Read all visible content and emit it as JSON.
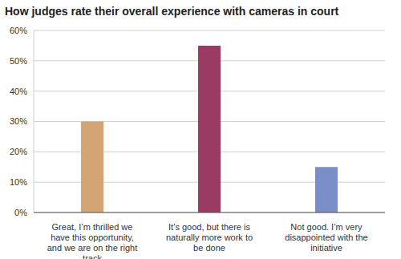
{
  "chart_data": {
    "type": "bar",
    "title": "How judges rate their overall experience with cameras in court",
    "categories": [
      "Great, I’m thrilled we have this opportunity, and we are on the right track",
      "It’s good, but there is naturally more work to be done",
      "Not good. I’m very disappointed with the initiative"
    ],
    "values": [
      30,
      55,
      15
    ],
    "colors": [
      "#d4a574",
      "#9b3a63",
      "#7b8ec8"
    ],
    "ylim": [
      0,
      60
    ],
    "yticks": [
      {
        "value": 0,
        "label": "0%"
      },
      {
        "value": 10,
        "label": "10%"
      },
      {
        "value": 20,
        "label": "20%"
      },
      {
        "value": 30,
        "label": "30%"
      },
      {
        "value": 40,
        "label": "40%"
      },
      {
        "value": 50,
        "label": "50%"
      },
      {
        "value": 60,
        "label": "60%"
      }
    ],
    "grid": true
  }
}
